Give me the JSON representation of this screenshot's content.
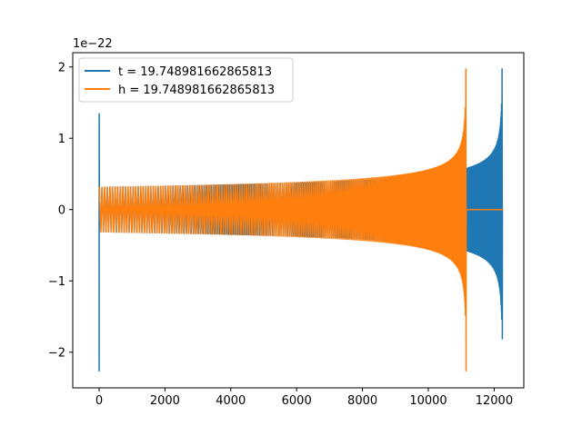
{
  "chart_data": {
    "type": "line",
    "title": "",
    "xlabel": "",
    "ylabel": "",
    "y_offset_label": "1e−22",
    "xlim": [
      -800,
      12900
    ],
    "ylim": [
      -2.5,
      2.2
    ],
    "x_ticks": [
      0,
      2000,
      4000,
      6000,
      8000,
      10000,
      12000
    ],
    "x_tick_labels": [
      "0",
      "2000",
      "4000",
      "6000",
      "8000",
      "10000",
      "12000"
    ],
    "y_ticks": [
      -2,
      -1,
      0,
      1,
      2
    ],
    "y_tick_labels": [
      "−2",
      "−1",
      "0",
      "1",
      "2"
    ],
    "grid": false,
    "legend_position": "top-left",
    "series": [
      {
        "name": "t = 19.748981662865813",
        "color": "#1f77b4",
        "style": "chirp",
        "x_start": 0,
        "x_merger": 12250,
        "x_end": 12280,
        "start_spike": [
          -2.27,
          1.35
        ],
        "inspiral_start_amplitude": 0.32,
        "merger_amplitude_min": -1.82,
        "merger_amplitude_max": 1.98
      },
      {
        "name": "h = 19.748981662865813",
        "color": "#ff7f0e",
        "style": "chirp",
        "x_start": 0,
        "x_merger": 11150,
        "x_end": 12280,
        "inspiral_start_amplitude": 0.32,
        "merger_amplitude_min": -2.27,
        "merger_amplitude_max": 1.98,
        "post_merger_value": 0
      }
    ]
  }
}
